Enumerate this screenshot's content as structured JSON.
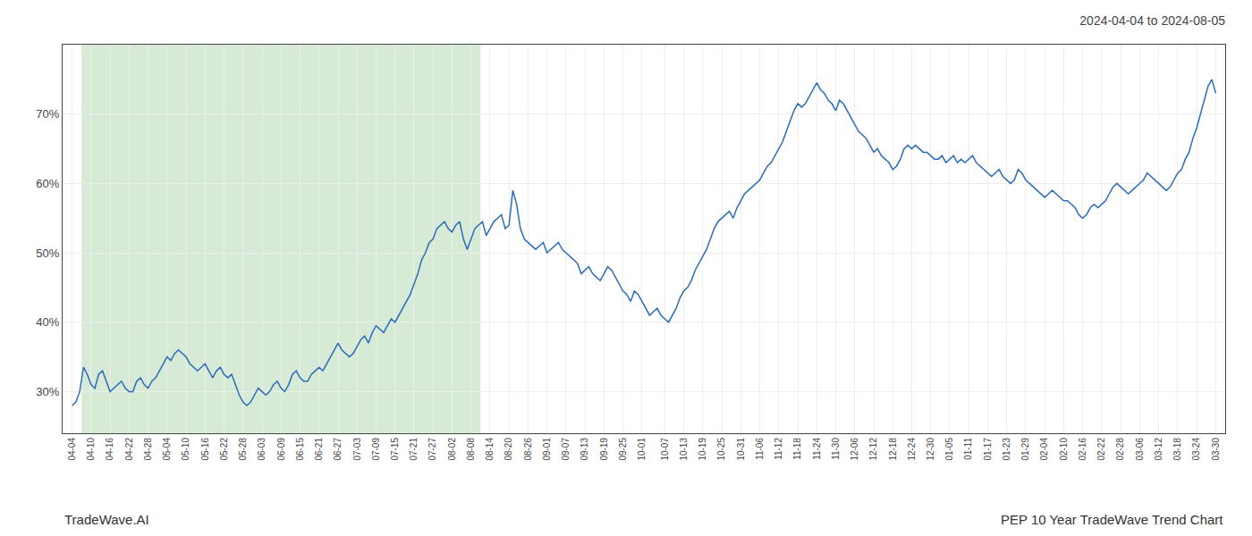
{
  "chart_data": {
    "type": "line",
    "title": "2024-04-04 to 2024-08-05",
    "annotations": [
      {
        "text": "TradeWave.AI"
      },
      {
        "text": "PEP 10 Year TradeWave Trend Chart"
      }
    ],
    "color": "#2b6cb8",
    "grid": true,
    "shade": {
      "start": "04-10",
      "end": "08-08",
      "color": "#d6ead6"
    },
    "ylim": [
      24,
      80
    ],
    "yticks": [
      {
        "value": 30,
        "label": "30%"
      },
      {
        "value": 40,
        "label": "40%"
      },
      {
        "value": 50,
        "label": "50%"
      },
      {
        "value": 60,
        "label": "60%"
      },
      {
        "value": 70,
        "label": "70%"
      }
    ],
    "categories": [
      "04-04",
      null,
      null,
      null,
      null,
      "04-10",
      null,
      null,
      null,
      null,
      "04-16",
      null,
      null,
      null,
      null,
      "04-22",
      null,
      null,
      null,
      null,
      "04-28",
      null,
      null,
      null,
      null,
      "05-04",
      null,
      null,
      null,
      null,
      "05-10",
      null,
      null,
      null,
      null,
      "05-16",
      null,
      null,
      null,
      null,
      "05-22",
      null,
      null,
      null,
      null,
      "05-28",
      null,
      null,
      null,
      null,
      "06-03",
      null,
      null,
      null,
      null,
      "06-09",
      null,
      null,
      null,
      null,
      "06-15",
      null,
      null,
      null,
      null,
      "06-21",
      null,
      null,
      null,
      null,
      "06-27",
      null,
      null,
      null,
      null,
      "07-03",
      null,
      null,
      null,
      null,
      "07-09",
      null,
      null,
      null,
      null,
      "07-15",
      null,
      null,
      null,
      null,
      "07-21",
      null,
      null,
      null,
      null,
      "07-27",
      null,
      null,
      null,
      null,
      "08-02",
      null,
      null,
      null,
      null,
      "08-08",
      null,
      null,
      null,
      null,
      "08-14",
      null,
      null,
      null,
      null,
      "08-20",
      null,
      null,
      null,
      null,
      "08-26",
      null,
      null,
      null,
      null,
      "09-01",
      null,
      null,
      null,
      null,
      "09-07",
      null,
      null,
      null,
      null,
      "09-13",
      null,
      null,
      null,
      null,
      "09-19",
      null,
      null,
      null,
      null,
      "09-25",
      null,
      null,
      null,
      null,
      "10-01",
      null,
      null,
      null,
      null,
      null,
      "10-07",
      null,
      null,
      null,
      null,
      "10-13",
      null,
      null,
      null,
      null,
      "10-19",
      null,
      null,
      null,
      null,
      "10-25",
      null,
      null,
      null,
      null,
      "10-31",
      null,
      null,
      null,
      null,
      "11-06",
      null,
      null,
      null,
      null,
      "11-12",
      null,
      null,
      null,
      null,
      "11-18",
      null,
      null,
      null,
      null,
      "11-24",
      null,
      null,
      null,
      null,
      "11-30",
      null,
      null,
      null,
      null,
      "12-06",
      null,
      null,
      null,
      null,
      "12-12",
      null,
      null,
      null,
      null,
      "12-18",
      null,
      null,
      null,
      null,
      "12-24",
      null,
      null,
      null,
      null,
      "12-30",
      null,
      null,
      null,
      null,
      "01-05",
      null,
      null,
      null,
      null,
      "01-11",
      null,
      null,
      null,
      null,
      "01-17",
      null,
      null,
      null,
      null,
      "01-23",
      null,
      null,
      null,
      null,
      "01-29",
      null,
      null,
      null,
      null,
      "02-04",
      null,
      null,
      null,
      null,
      "02-10",
      null,
      null,
      null,
      null,
      "02-16",
      null,
      null,
      null,
      null,
      "02-22",
      null,
      null,
      null,
      null,
      "02-28",
      null,
      null,
      null,
      null,
      "03-06",
      null,
      null,
      null,
      null,
      "03-12",
      null,
      null,
      null,
      null,
      "03-18",
      null,
      null,
      null,
      null,
      "03-24",
      null,
      null,
      null,
      null,
      "03-30"
    ],
    "values": [
      28.0,
      28.5,
      30.0,
      33.5,
      32.5,
      31.0,
      30.5,
      32.5,
      33.0,
      31.5,
      30.0,
      30.5,
      31.0,
      31.5,
      30.5,
      30.0,
      30.0,
      31.5,
      32.0,
      31.0,
      30.5,
      31.5,
      32.0,
      33.0,
      34.0,
      35.0,
      34.5,
      35.5,
      36.0,
      35.5,
      35.0,
      34.0,
      33.5,
      33.0,
      33.5,
      34.0,
      33.0,
      32.0,
      33.0,
      33.5,
      32.5,
      32.0,
      32.5,
      31.0,
      29.5,
      28.5,
      28.0,
      28.5,
      29.5,
      30.5,
      30.0,
      29.5,
      30.0,
      31.0,
      31.5,
      30.5,
      30.0,
      31.0,
      32.5,
      33.0,
      32.0,
      31.5,
      31.5,
      32.5,
      33.0,
      33.5,
      33.0,
      34.0,
      35.0,
      36.0,
      37.0,
      36.0,
      35.5,
      35.0,
      35.5,
      36.5,
      37.5,
      38.0,
      37.0,
      38.5,
      39.5,
      39.0,
      38.5,
      39.5,
      40.5,
      40.0,
      41.0,
      42.0,
      43.0,
      44.0,
      45.5,
      47.0,
      49.0,
      50.0,
      51.5,
      52.0,
      53.5,
      54.0,
      54.5,
      53.5,
      53.0,
      54.0,
      54.5,
      52.0,
      50.5,
      52.0,
      53.5,
      54.0,
      54.5,
      52.5,
      53.5,
      54.5,
      55.0,
      55.5,
      53.5,
      54.0,
      59.0,
      57.0,
      53.5,
      52.0,
      51.5,
      51.0,
      50.5,
      51.0,
      51.5,
      50.0,
      50.5,
      51.0,
      51.5,
      50.5,
      50.0,
      49.5,
      49.0,
      48.5,
      47.0,
      47.5,
      48.0,
      47.0,
      46.5,
      46.0,
      47.0,
      48.0,
      47.5,
      46.5,
      45.5,
      44.5,
      44.0,
      43.0,
      44.5,
      44.0,
      43.0,
      42.0,
      41.0,
      41.5,
      42.0,
      41.0,
      40.5,
      40.0,
      41.0,
      42.0,
      43.5,
      44.5,
      45.0,
      46.0,
      47.5,
      48.5,
      49.5,
      50.5,
      52.0,
      53.5,
      54.5,
      55.0,
      55.5,
      56.0,
      55.0,
      56.5,
      57.5,
      58.5,
      59.0,
      59.5,
      60.0,
      60.5,
      61.5,
      62.5,
      63.0,
      64.0,
      65.0,
      66.0,
      67.5,
      69.0,
      70.5,
      71.5,
      71.0,
      71.5,
      72.5,
      73.5,
      74.5,
      73.5,
      73.0,
      72.0,
      71.5,
      70.5,
      72.0,
      71.5,
      70.5,
      69.5,
      68.5,
      67.5,
      67.0,
      66.5,
      65.5,
      64.5,
      65.0,
      64.0,
      63.5,
      63.0,
      62.0,
      62.5,
      63.5,
      65.0,
      65.5,
      65.0,
      65.5,
      65.0,
      64.5,
      64.5,
      64.0,
      63.5,
      63.5,
      64.0,
      63.0,
      63.5,
      64.0,
      63.0,
      63.5,
      63.0,
      63.5,
      64.0,
      63.0,
      62.5,
      62.0,
      61.5,
      61.0,
      61.5,
      62.0,
      61.0,
      60.5,
      60.0,
      60.5,
      62.0,
      61.5,
      60.5,
      60.0,
      59.5,
      59.0,
      58.5,
      58.0,
      58.5,
      59.0,
      58.5,
      58.0,
      57.5,
      57.5,
      57.0,
      56.5,
      55.5,
      55.0,
      55.5,
      56.5,
      57.0,
      56.5,
      57.0,
      57.5,
      58.5,
      59.5,
      60.0,
      59.5,
      59.0,
      58.5,
      59.0,
      59.5,
      60.0,
      60.5,
      61.5,
      61.0,
      60.5,
      60.0,
      59.5,
      59.0,
      59.5,
      60.5,
      61.5,
      62.0,
      63.5,
      64.5,
      66.5,
      68.0,
      70.0,
      72.0,
      74.0,
      75.0,
      73.0
    ]
  }
}
